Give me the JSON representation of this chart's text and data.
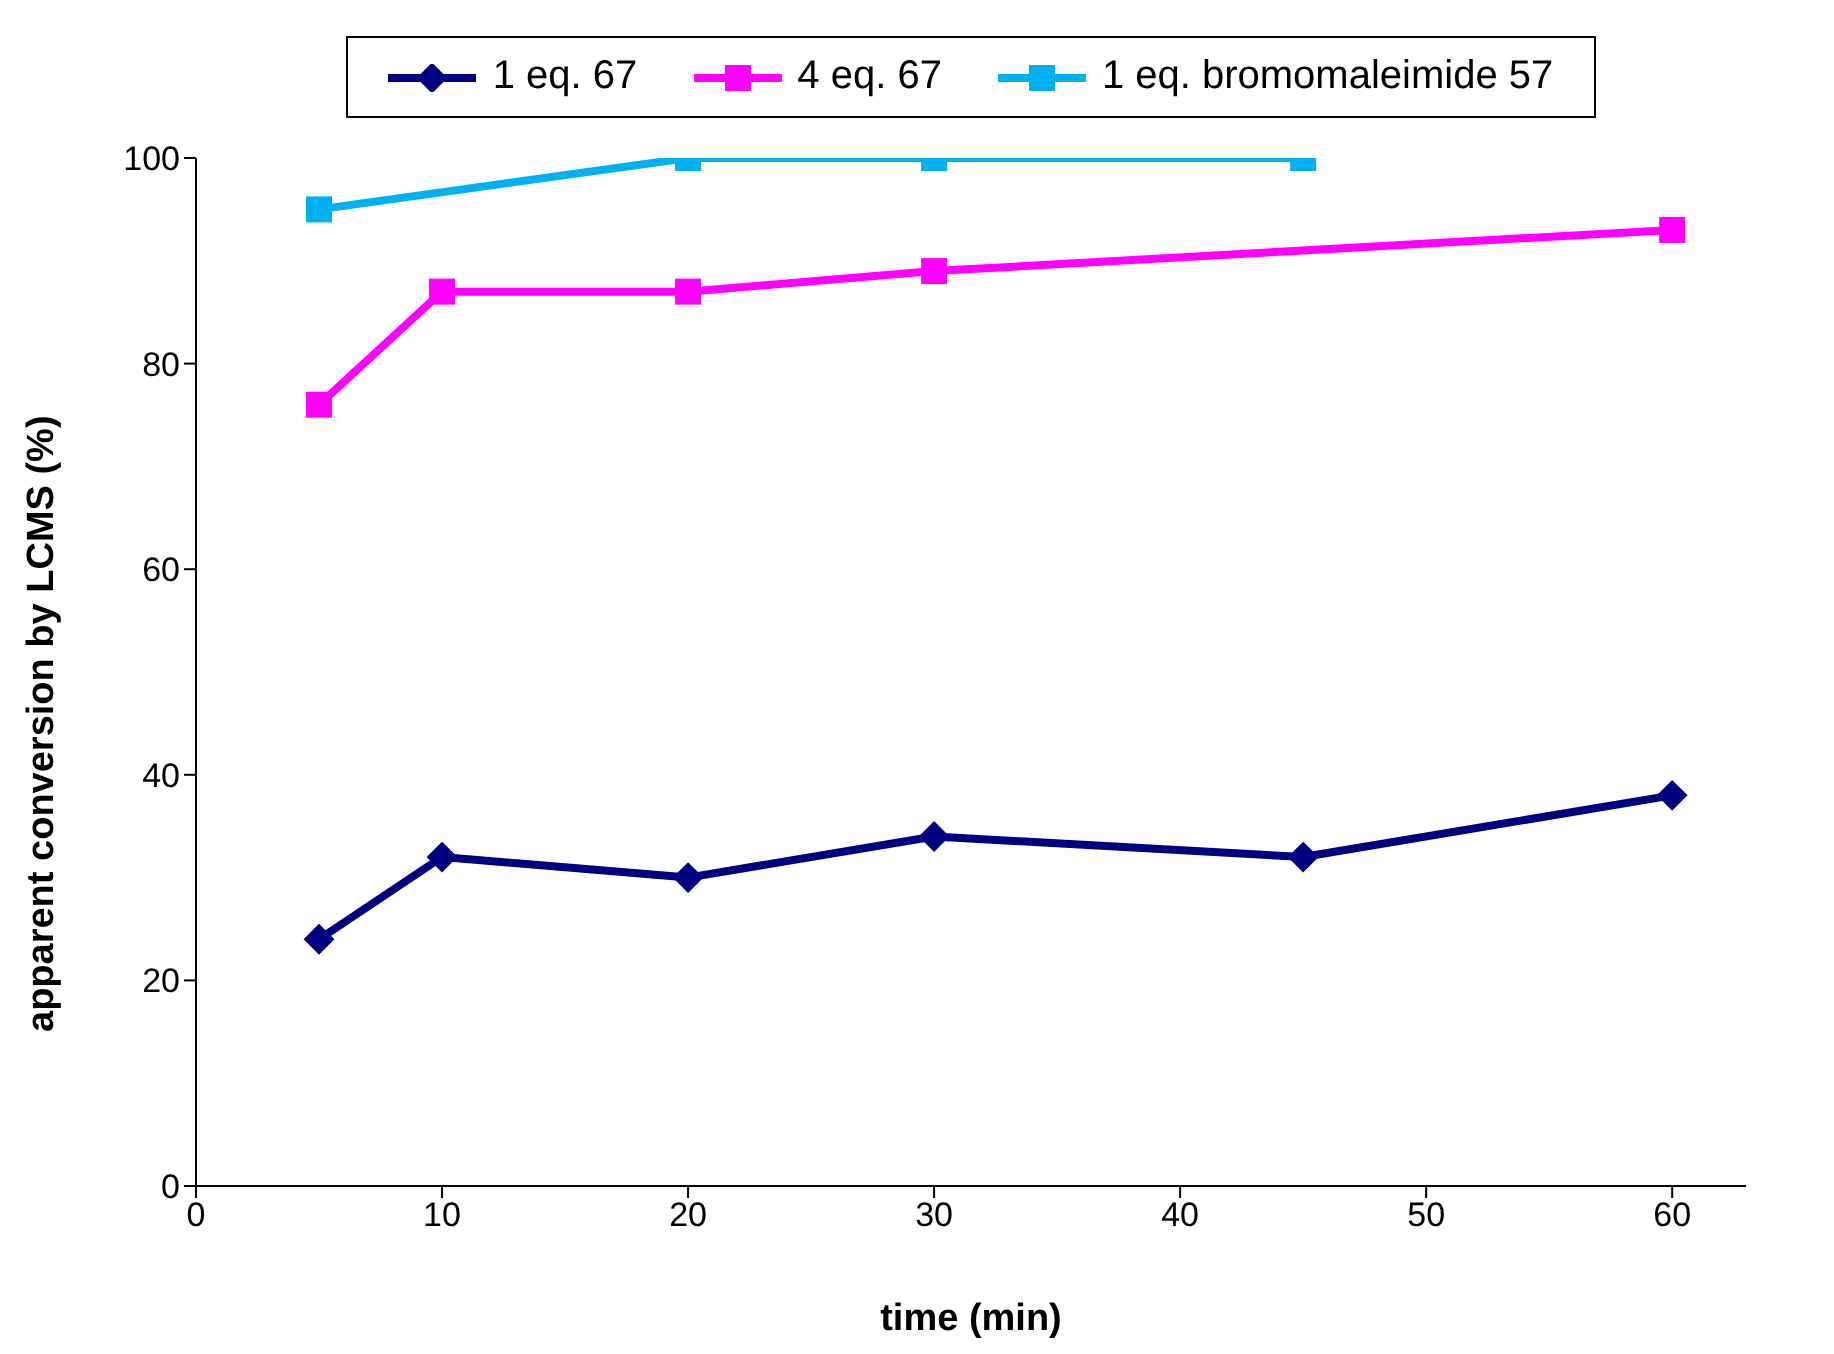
{
  "chart_data": {
    "type": "line",
    "xlabel": "time (min)",
    "ylabel": "apparent conversion by LCMS (%)",
    "xlim": [
      0,
      63
    ],
    "xticks": [
      0,
      10,
      20,
      30,
      40,
      50,
      60
    ],
    "ylim": [
      0,
      100
    ],
    "yticks": [
      0,
      20,
      40,
      60,
      80,
      100
    ],
    "grid": false,
    "legend": "top",
    "line_style": "solid",
    "series": [
      {
        "name": "1 eq. 67",
        "color": "#000080",
        "marker": "diamond",
        "x": [
          5,
          10,
          20,
          30,
          45,
          60
        ],
        "values": [
          24,
          32,
          30,
          34,
          32,
          38
        ]
      },
      {
        "name": "4 eq. 67",
        "color": "#ff00ff",
        "marker": "square",
        "x": [
          5,
          10,
          20,
          30,
          60
        ],
        "values": [
          76,
          87,
          87,
          89,
          93
        ]
      },
      {
        "name": "1 eq. bromomaleimide 57",
        "color": "#00b0f0",
        "marker": "square",
        "x": [
          5,
          20,
          30,
          45
        ],
        "values": [
          95,
          100,
          100,
          100
        ]
      }
    ]
  }
}
